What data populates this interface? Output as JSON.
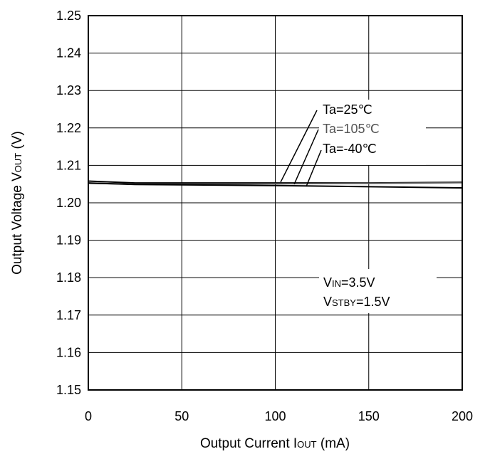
{
  "chart_data": {
    "type": "line",
    "xlabel": {
      "main": "Output Current I",
      "sub": "OUT",
      "unit": " (mA)"
    },
    "ylabel": {
      "main": "Output Voltage V",
      "sub": "OUT",
      "unit": " (V)"
    },
    "xlim": [
      0,
      200
    ],
    "ylim": [
      1.15,
      1.25
    ],
    "x_ticks": [
      "0",
      "50",
      "100",
      "150",
      "200"
    ],
    "y_ticks": [
      "1.15",
      "1.16",
      "1.17",
      "1.18",
      "1.19",
      "1.20",
      "1.21",
      "1.22",
      "1.23",
      "1.24",
      "1.25"
    ],
    "grid": true,
    "series": [
      {
        "name": "Ta=25℃",
        "color": "#000000",
        "x": [
          0,
          25,
          50,
          100,
          150,
          200
        ],
        "y": [
          1.2058,
          1.2053,
          1.2053,
          1.2053,
          1.2053,
          1.2055
        ]
      },
      {
        "name": "Ta=105℃",
        "color": "#555555",
        "x": [
          0,
          25,
          50,
          100,
          150,
          200
        ],
        "y": [
          1.2052,
          1.205,
          1.205,
          1.2051,
          1.2052,
          1.2054
        ]
      },
      {
        "name": "Ta=-40℃",
        "color": "#000000",
        "x": [
          0,
          25,
          50,
          100,
          150,
          200
        ],
        "y": [
          1.2053,
          1.2049,
          1.2048,
          1.2046,
          1.2043,
          1.204
        ]
      }
    ],
    "annotations": {
      "series_labels": [
        "Ta=25℃",
        "Ta=105℃",
        "Ta=-40℃"
      ],
      "conditions": [
        {
          "main": "V",
          "sub": "IN",
          "rest": "=3.5V"
        },
        {
          "main": "V",
          "sub": "STBY",
          "rest": "=1.5V"
        }
      ]
    }
  }
}
